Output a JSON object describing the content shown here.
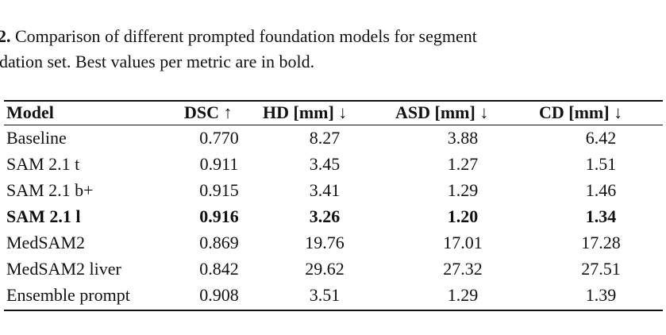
{
  "caption": {
    "label": "2.",
    "lines": [
      "Comparison of different prompted foundation models for segment",
      "dation set. Best values per metric are in bold."
    ]
  },
  "table": {
    "header": [
      "Model",
      "DSC ↑",
      "HD [mm] ↓",
      "ASD [mm] ↓",
      "CD [mm] ↓"
    ],
    "rows": [
      {
        "cells": [
          "Baseline",
          "0.770",
          "8.27",
          "3.88",
          "6.42"
        ],
        "bold": false
      },
      {
        "cells": [
          "SAM 2.1 t",
          "0.911",
          "3.45",
          "1.27",
          "1.51"
        ],
        "bold": false
      },
      {
        "cells": [
          "SAM 2.1 b+",
          "0.915",
          "3.41",
          "1.29",
          "1.46"
        ],
        "bold": false
      },
      {
        "cells": [
          "SAM 2.1 l",
          "0.916",
          "3.26",
          "1.20",
          "1.34"
        ],
        "bold": true
      },
      {
        "cells": [
          "MedSAM2",
          "0.869",
          "19.76",
          "17.01",
          "17.28"
        ],
        "bold": false
      },
      {
        "cells": [
          "MedSAM2 liver",
          "0.842",
          "29.62",
          "27.32",
          "27.51"
        ],
        "bold": false
      },
      {
        "cells": [
          "Ensemble prompt",
          "0.908",
          "3.51",
          "1.29",
          "1.39"
        ],
        "bold": false
      }
    ]
  }
}
